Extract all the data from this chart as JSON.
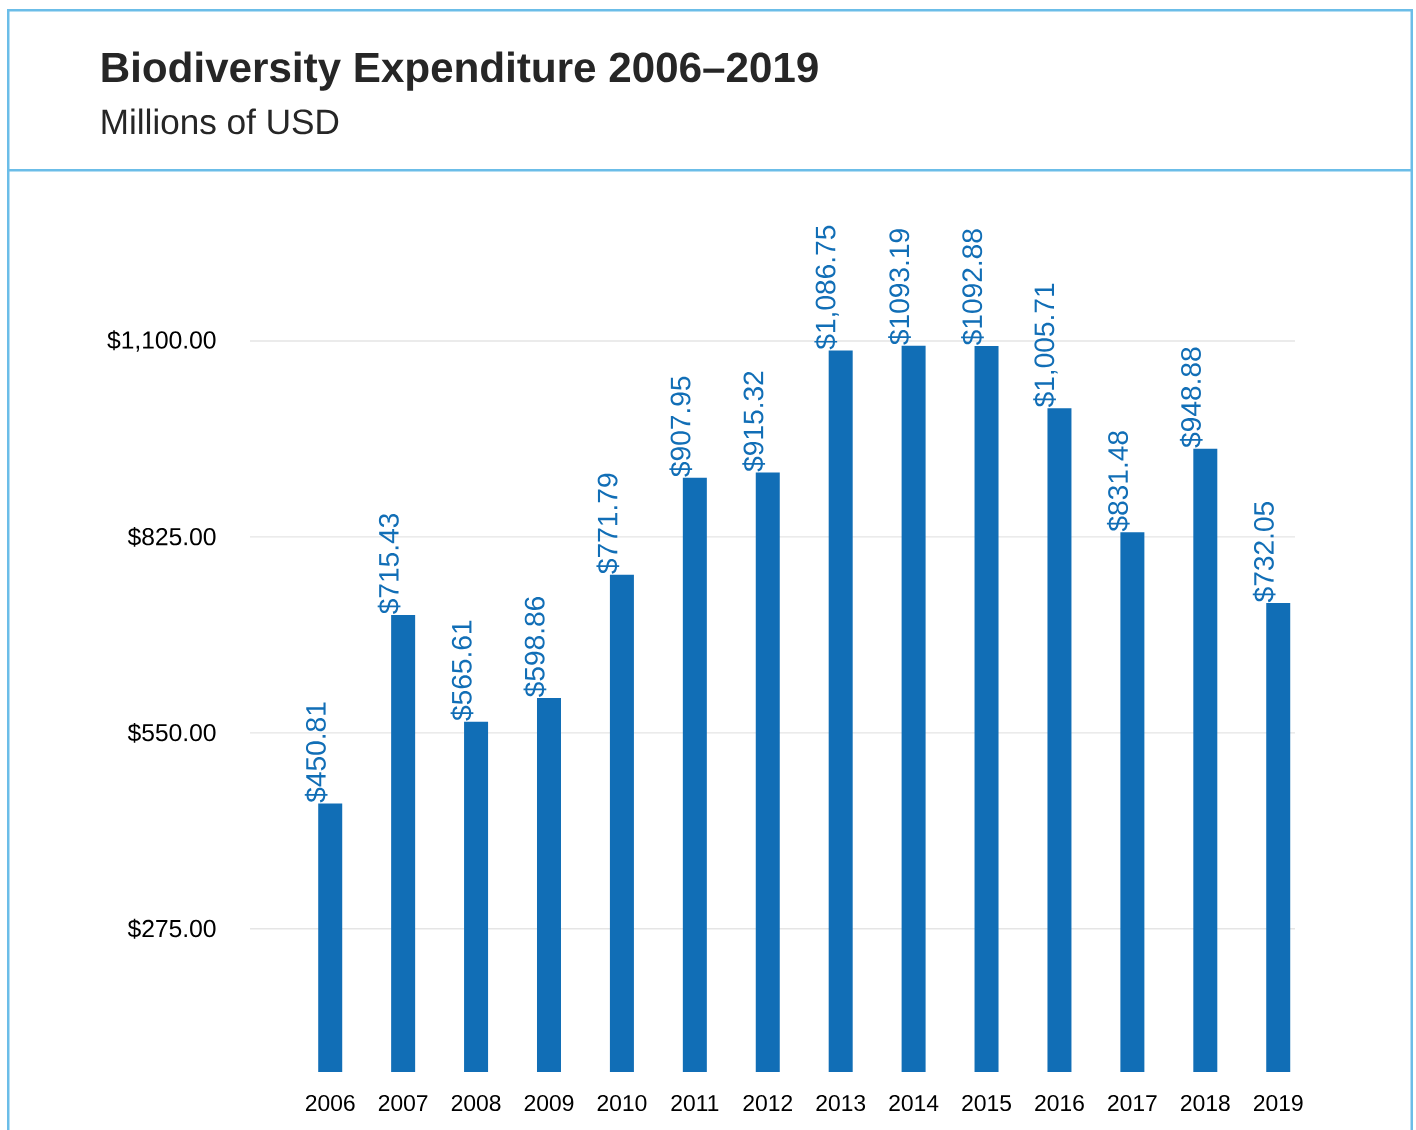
{
  "chart_data": {
    "type": "bar",
    "title": "Biodiversity Expenditure 2006–2019",
    "subtitle": "Millions of USD",
    "categories": [
      "2006",
      "2007",
      "2008",
      "2009",
      "2010",
      "2011",
      "2012",
      "2013",
      "2014",
      "2015",
      "2016",
      "2017",
      "2018",
      "2019"
    ],
    "values": [
      450.81,
      715.43,
      565.61,
      598.86,
      771.79,
      907.95,
      915.32,
      1086.75,
      1093.19,
      1092.88,
      1005.71,
      831.48,
      948.88,
      732.05
    ],
    "value_labels": [
      "$450.81",
      "$715.43",
      "$565.61",
      "$598.86",
      "$771.79",
      "$907.95",
      "$915.32",
      "$1,086.75",
      "$1093.19",
      "$1092.88",
      "$1,005.71",
      "$831.48",
      "$948.88",
      "$732.05"
    ],
    "color": "#116eb6",
    "ylim": [
      74,
      1100
    ],
    "yticks": [
      {
        "value": 275,
        "label": "$275.00"
      },
      {
        "value": 550,
        "label": "$550.00"
      },
      {
        "value": 825,
        "label": "$825.00"
      },
      {
        "value": 1100,
        "label": "$1,100.00"
      }
    ],
    "grid": "y"
  }
}
